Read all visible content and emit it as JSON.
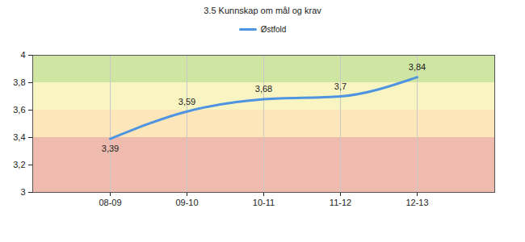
{
  "chart_data": {
    "type": "line",
    "title": "3.5 Kunnskap om mål og krav",
    "categories": [
      "08-09",
      "09-10",
      "10-11",
      "11-12",
      "12-13"
    ],
    "series": [
      {
        "name": "Østfold",
        "color": "#4f94e0",
        "values": [
          3.39,
          3.59,
          3.68,
          3.7,
          3.84
        ],
        "value_labels": [
          "3,39",
          "3,59",
          "3,68",
          "3,7",
          "3,84"
        ]
      }
    ],
    "ylim": [
      3,
      4
    ],
    "yticks": [
      3,
      {
        "value": 3.2,
        "label": "3,2"
      },
      {
        "value": 3.4,
        "label": "3,4"
      },
      {
        "value": 3.6,
        "label": "3,6"
      },
      {
        "value": 3.8,
        "label": "3,8"
      },
      4
    ],
    "bands": [
      {
        "from": 3,
        "to": 3.4,
        "color": "#efbbae"
      },
      {
        "from": 3.4,
        "to": 3.6,
        "color": "#fde6ba"
      },
      {
        "from": 3.6,
        "to": 3.8,
        "color": "#f8f5c2"
      },
      {
        "from": 3.8,
        "to": 4,
        "color": "#cfe6a3"
      }
    ],
    "grid": true,
    "legend": "top",
    "data_labels": true,
    "line_style": "smooth",
    "marker": "none"
  }
}
